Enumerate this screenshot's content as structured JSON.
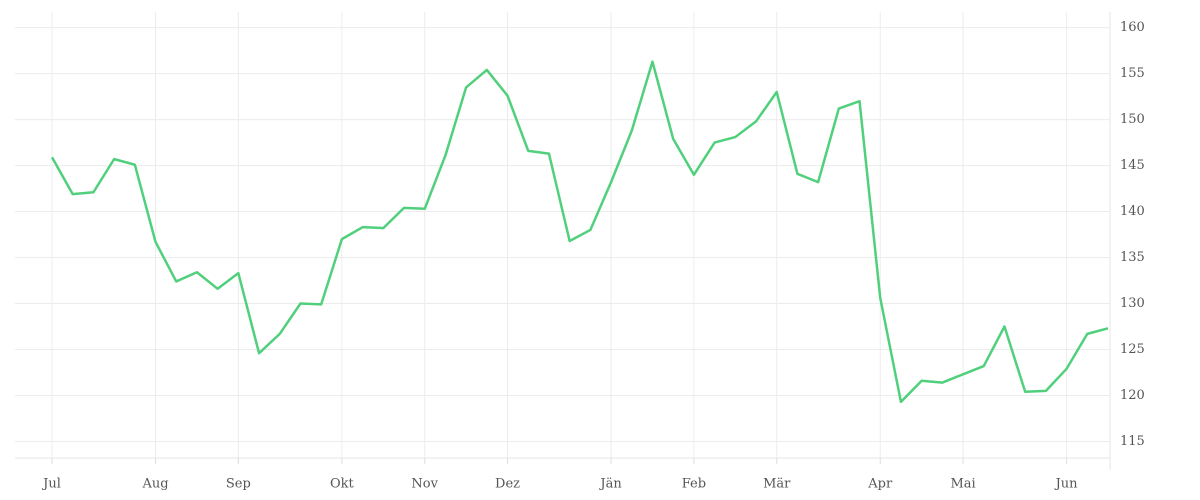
{
  "chart_data": {
    "type": "line",
    "categories": [
      "Jul",
      null,
      null,
      null,
      null,
      "Aug",
      null,
      null,
      null,
      "Sep",
      null,
      null,
      null,
      null,
      "Okt",
      null,
      null,
      null,
      "Nov",
      null,
      null,
      null,
      "Dez",
      null,
      null,
      null,
      null,
      "Jän",
      null,
      null,
      null,
      "Feb",
      null,
      null,
      null,
      "Mär",
      null,
      null,
      null,
      null,
      "Apr",
      null,
      null,
      null,
      "Mai",
      null,
      null,
      null,
      null,
      "Jun",
      null,
      null
    ],
    "values": [
      145.9,
      141.9,
      142.1,
      145.7,
      145.1,
      136.7,
      132.4,
      133.4,
      131.6,
      133.3,
      124.6,
      126.7,
      130.0,
      129.9,
      137.0,
      138.3,
      138.2,
      140.4,
      140.3,
      146.1,
      153.5,
      155.4,
      152.6,
      146.6,
      146.3,
      136.8,
      138.0,
      143.2,
      148.8,
      156.3,
      147.9,
      144.0,
      147.5,
      148.1,
      149.8,
      153.0,
      144.1,
      143.2,
      151.2,
      152.0,
      130.6,
      119.3,
      121.6,
      121.4,
      122.3,
      123.2,
      127.5,
      120.4,
      120.5,
      122.9,
      126.7,
      127.3
    ],
    "color": "#50d07c",
    "ylim": [
      113.2,
      161.7
    ],
    "yticks": [
      115,
      120,
      125,
      130,
      135,
      140,
      145,
      150,
      155,
      160
    ],
    "grid": true
  }
}
